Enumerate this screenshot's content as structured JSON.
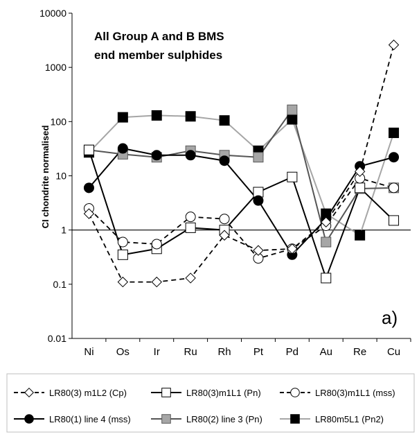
{
  "chart_data": {
    "type": "line",
    "title": "All Group  A and B BMS",
    "subtitle": "end member sulphides",
    "panel_label": "a)",
    "xlabel": "",
    "ylabel": "CI chondrite normalised",
    "yscale": "log",
    "ylim": [
      0.01,
      10000
    ],
    "yticks": [
      "0.01",
      "0.1",
      "1",
      "10",
      "100",
      "1000",
      "10000"
    ],
    "reference_line": 1,
    "grid": false,
    "legend_position": "bottom",
    "categories": [
      "Ni",
      "Os",
      "Ir",
      "Ru",
      "Rh",
      "Pt",
      "Pd",
      "Au",
      "Re",
      "Cu"
    ],
    "series": [
      {
        "name": "LR80(3) m1L2 (Cp)",
        "color": "#000000",
        "line": "dashed",
        "marker": "diamond-open",
        "values": [
          2.0,
          0.11,
          0.11,
          0.13,
          0.8,
          0.42,
          0.45,
          1.4,
          12,
          2600
        ]
      },
      {
        "name": "LR80(3)m1L1 (Pn)",
        "color": "#000000",
        "line": "solid",
        "marker": "square-open",
        "values": [
          30,
          0.35,
          0.45,
          1.1,
          1.0,
          5.0,
          9.5,
          0.13,
          6.0,
          1.5
        ]
      },
      {
        "name": "LR80(3)m1L1 (mss)",
        "color": "#000000",
        "line": "dashed",
        "marker": "circle-open",
        "values": [
          2.5,
          0.6,
          0.55,
          1.75,
          1.6,
          0.3,
          0.45,
          1.2,
          9.0,
          6.0
        ]
      },
      {
        "name": "LR80(1) line 4 (mss)",
        "color": "#000000",
        "line": "solid",
        "marker": "circle-filled",
        "values": [
          6.0,
          32,
          24,
          24,
          19,
          3.5,
          0.35,
          1.6,
          15,
          22
        ]
      },
      {
        "name": "LR80(2) line 3 (Pn)",
        "color": "#555555",
        "line": "solid",
        "marker": "square-gray",
        "values": [
          30,
          25,
          22,
          29,
          24,
          22,
          165,
          0.6,
          5.8,
          6.0
        ]
      },
      {
        "name": "LR80m5L1 (Pn2)",
        "color": "#a6a6a6",
        "line": "solid",
        "marker": "square-filled",
        "values": [
          27,
          120,
          130,
          125,
          105,
          29,
          110,
          2.0,
          0.8,
          62
        ]
      }
    ]
  }
}
